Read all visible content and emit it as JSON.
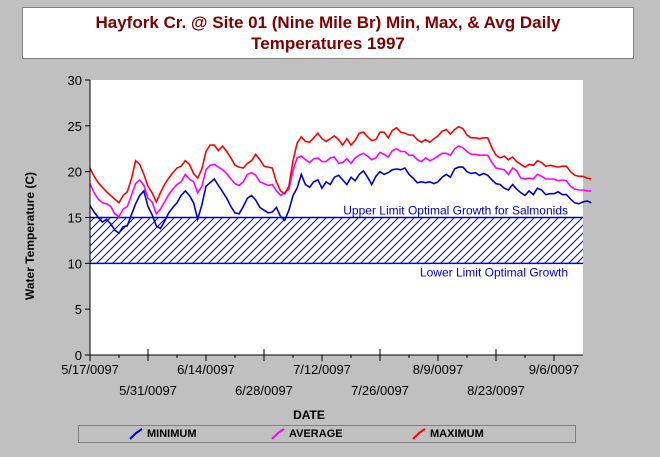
{
  "title_line1": "Hayfork Cr. @ Site 01 (Nine Mile Br) Min, Max, & Avg Daily",
  "title_line2": "Temperatures 1997",
  "chart_data": {
    "type": "line",
    "xlabel": "DATE",
    "ylabel": "Water Temperature (C)",
    "ylim": [
      0,
      30
    ],
    "yticks": [
      0,
      5,
      10,
      15,
      20,
      25,
      30
    ],
    "xlim_days": [
      0,
      119
    ],
    "x_ticks_upper": [
      {
        "day": 0,
        "label": "5/17/0097"
      },
      {
        "day": 28,
        "label": "6/14/0097"
      },
      {
        "day": 56,
        "label": "7/12/0097"
      },
      {
        "day": 84,
        "label": "8/9/0097"
      },
      {
        "day": 112,
        "label": "9/6/0097"
      }
    ],
    "x_ticks_lower": [
      {
        "day": 14,
        "label": "5/31/0097"
      },
      {
        "day": 42,
        "label": "6/28/0097"
      },
      {
        "day": 70,
        "label": "7/26/0097"
      },
      {
        "day": 98,
        "label": "8/23/0097"
      }
    ],
    "band": {
      "upper": 15,
      "lower": 10,
      "upper_label": "Upper Limit Optimal Growth for Salmonids",
      "lower_label": "Lower Limit Optimal Growth",
      "color": "#0000cc"
    },
    "series": [
      {
        "name": "MINIMUM",
        "color": "#0000cc",
        "values": [
          16.3,
          15.6,
          15.0,
          14.5,
          14.8,
          14.3,
          13.6,
          13.3,
          14.0,
          14.1,
          15.3,
          16.5,
          17.4,
          17.9,
          16.2,
          15.3,
          14.1,
          13.8,
          14.6,
          15.5,
          16.1,
          16.6,
          17.4,
          17.9,
          17.4,
          16.6,
          14.8,
          16.4,
          18.4,
          18.8,
          19.2,
          18.5,
          17.8,
          17.1,
          16.2,
          15.5,
          15.4,
          16.2,
          17.1,
          17.4,
          16.9,
          16.1,
          15.8,
          15.5,
          15.6,
          16.1,
          15.1,
          14.7,
          15.8,
          17.4,
          18.2,
          19.7,
          18.6,
          18.3,
          18.9,
          19.1,
          18.2,
          18.9,
          18.6,
          19.4,
          19.6,
          19.1,
          18.6,
          19.4,
          19.0,
          19.7,
          20.1,
          19.4,
          18.6,
          19.5,
          20.0,
          19.7,
          19.9,
          20.2,
          20.3,
          20.2,
          20.4,
          19.7,
          19.3,
          18.8,
          18.9,
          18.8,
          18.9,
          18.7,
          18.9,
          19.4,
          19.7,
          19.4,
          20.3,
          20.5,
          20.5,
          20.0,
          19.8,
          19.9,
          19.6,
          19.8,
          19.6,
          19.1,
          18.7,
          18.6,
          18.2,
          18.0,
          18.6,
          18.1,
          17.7,
          17.4,
          17.9,
          17.5,
          18.2,
          18.0,
          17.5,
          17.6,
          17.6,
          17.8,
          17.5,
          17.5,
          17.0,
          16.6,
          16.5,
          16.7,
          16.8,
          16.6
        ]
      },
      {
        "name": "AVERAGE",
        "color": "#ff00ff",
        "values": [
          18.7,
          17.7,
          17.0,
          16.6,
          16.5,
          16.2,
          15.4,
          15.1,
          15.9,
          16.2,
          17.4,
          18.7,
          19.1,
          18.5,
          17.1,
          16.7,
          15.4,
          15.9,
          16.7,
          17.5,
          18.1,
          18.6,
          18.9,
          19.7,
          19.2,
          18.9,
          17.7,
          18.4,
          20.2,
          20.7,
          20.8,
          20.5,
          20.2,
          19.8,
          19.2,
          18.7,
          18.5,
          18.9,
          19.7,
          19.9,
          19.6,
          18.9,
          18.7,
          18.5,
          18.6,
          17.9,
          17.4,
          17.7,
          18.1,
          20.1,
          21.5,
          21.7,
          21.3,
          21.0,
          21.4,
          21.5,
          21.1,
          21.1,
          21.5,
          21.6,
          20.9,
          21.0,
          21.4,
          20.9,
          21.5,
          21.8,
          22.0,
          21.7,
          21.3,
          21.5,
          22.1,
          21.9,
          21.6,
          22.3,
          22.5,
          22.2,
          22.2,
          21.8,
          21.8,
          21.3,
          21.1,
          21.5,
          21.2,
          21.4,
          21.7,
          22.0,
          22.0,
          21.8,
          22.5,
          22.8,
          22.6,
          22.2,
          21.9,
          21.9,
          21.8,
          21.8,
          21.8,
          21.0,
          20.4,
          20.3,
          20.2,
          19.7,
          20.4,
          20.1,
          19.3,
          19.2,
          19.3,
          19.2,
          19.7,
          19.5,
          19.2,
          19.2,
          19.2,
          19.0,
          19.1,
          19.0,
          18.4,
          18.1,
          18.0,
          18.0,
          17.9,
          17.9
        ]
      },
      {
        "name": "MAXIMUM",
        "color": "#ff0000",
        "values": [
          20.4,
          19.5,
          18.8,
          18.3,
          17.8,
          17.4,
          17.0,
          16.6,
          17.4,
          17.8,
          19.2,
          21.2,
          20.8,
          19.7,
          18.4,
          17.7,
          16.7,
          17.7,
          18.6,
          19.3,
          19.9,
          20.4,
          20.6,
          21.2,
          20.8,
          19.8,
          19.3,
          20.3,
          22.2,
          22.9,
          22.9,
          22.3,
          22.8,
          22.2,
          21.5,
          20.7,
          20.5,
          20.4,
          20.9,
          21.2,
          21.9,
          21.3,
          20.6,
          20.5,
          20.4,
          18.9,
          17.9,
          17.6,
          18.4,
          21.2,
          23.1,
          23.8,
          23.3,
          23.2,
          23.7,
          24.2,
          23.6,
          23.3,
          23.6,
          23.9,
          23.5,
          22.9,
          23.6,
          22.9,
          23.4,
          24.2,
          24.3,
          23.8,
          23.4,
          23.5,
          24.3,
          24.3,
          23.7,
          24.5,
          24.8,
          24.3,
          24.2,
          24.0,
          24.0,
          23.5,
          23.2,
          23.5,
          23.2,
          23.6,
          23.9,
          24.4,
          24.6,
          24.1,
          24.6,
          24.9,
          24.7,
          24.0,
          23.7,
          23.7,
          23.6,
          23.7,
          23.7,
          22.6,
          21.8,
          21.5,
          21.7,
          21.3,
          21.6,
          21.1,
          20.8,
          20.5,
          20.8,
          20.7,
          21.2,
          21.0,
          20.6,
          20.7,
          20.6,
          20.5,
          20.6,
          20.6,
          20.0,
          19.6,
          19.5,
          19.5,
          19.3,
          19.2
        ]
      }
    ],
    "legend_position": "bottom",
    "grid": false
  }
}
